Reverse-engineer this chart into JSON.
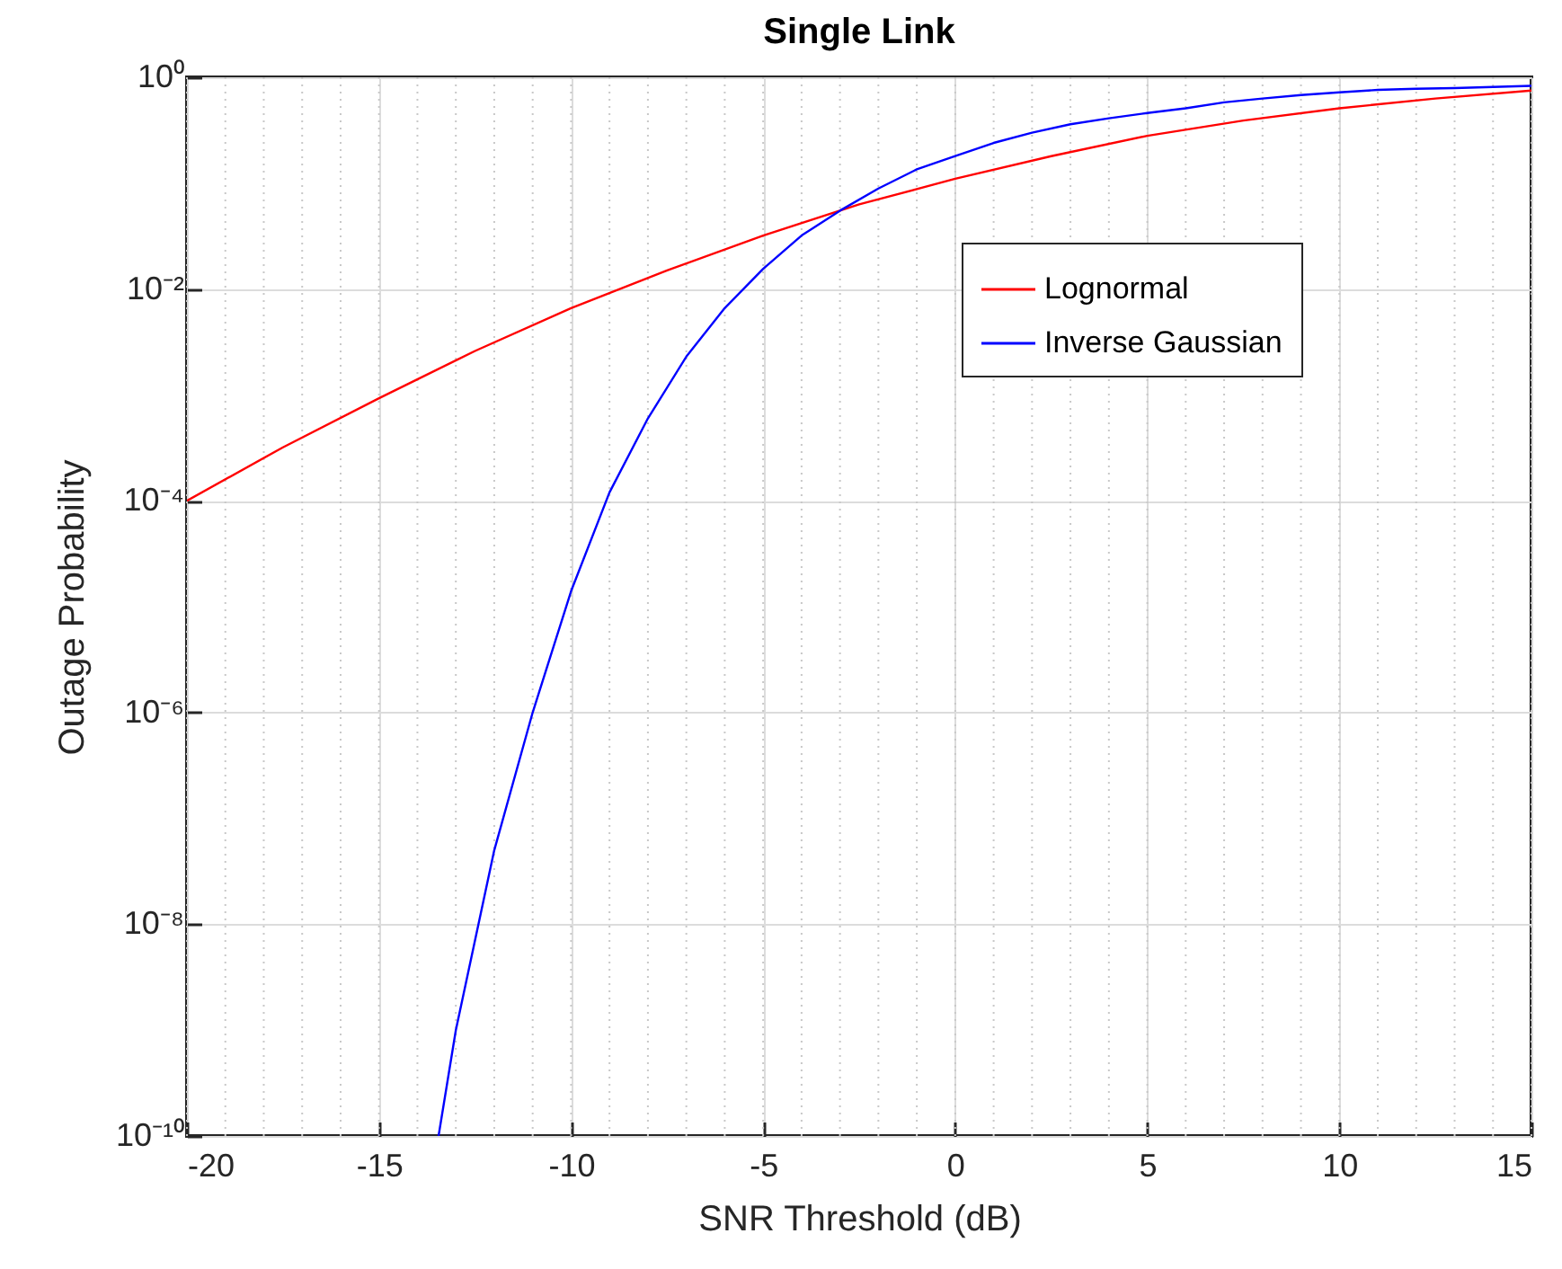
{
  "chart_data": {
    "type": "line",
    "title": "Single Link",
    "xlabel": "SNR Threshold (dB)",
    "ylabel": "Outage Probability",
    "log": "y",
    "grid": true,
    "legend": "top right",
    "line_style": "solid",
    "marker": "none",
    "xlim": [
      -20,
      15
    ],
    "xticks": [
      -20,
      -15,
      -10,
      -5,
      0,
      5,
      10,
      15
    ],
    "ylim": [
      1e-10,
      1
    ],
    "yticks": [
      {
        "value": 1e-10,
        "label": "10⁻¹⁰"
      },
      {
        "value": 1e-08,
        "label": "10⁻⁸"
      },
      {
        "value": 1e-06,
        "label": "10⁻⁶"
      },
      {
        "value": 0.0001,
        "label": "10⁻⁴"
      },
      {
        "value": 0.01,
        "label": "10⁻²"
      },
      {
        "value": 1,
        "label": "10⁰"
      }
    ],
    "series": [
      {
        "name": "Lognormal",
        "color": "#ff0000",
        "x": [
          -20,
          -17.5,
          -15,
          -12.5,
          -10,
          -7.5,
          -5,
          -2.5,
          0,
          2.5,
          5,
          7.5,
          10,
          12.5,
          15
        ],
        "values": [
          0.0001,
          0.00032,
          0.00093,
          0.0026,
          0.0066,
          0.015,
          0.032,
          0.063,
          0.11,
          0.18,
          0.28,
          0.39,
          0.51,
          0.63,
          0.75
        ]
      },
      {
        "name": "Inverse Gaussian",
        "color": "#0000ff",
        "x": [
          -13.45,
          -13,
          -12,
          -11,
          -10,
          -9,
          -8,
          -7,
          -6,
          -5,
          -4,
          -3,
          -2,
          -1,
          0,
          1,
          2,
          3,
          4,
          5,
          6,
          7,
          8,
          9,
          10,
          11,
          12,
          13,
          14,
          15
        ],
        "values": [
          1e-10,
          1e-09,
          5e-08,
          1e-06,
          1.4e-05,
          0.00012,
          0.0006,
          0.0023,
          0.0066,
          0.0155,
          0.032,
          0.055,
          0.089,
          0.135,
          0.18,
          0.24,
          0.3,
          0.36,
          0.41,
          0.46,
          0.51,
          0.58,
          0.63,
          0.68,
          0.72,
          0.76,
          0.78,
          0.79,
          0.81,
          0.83
        ]
      }
    ]
  }
}
